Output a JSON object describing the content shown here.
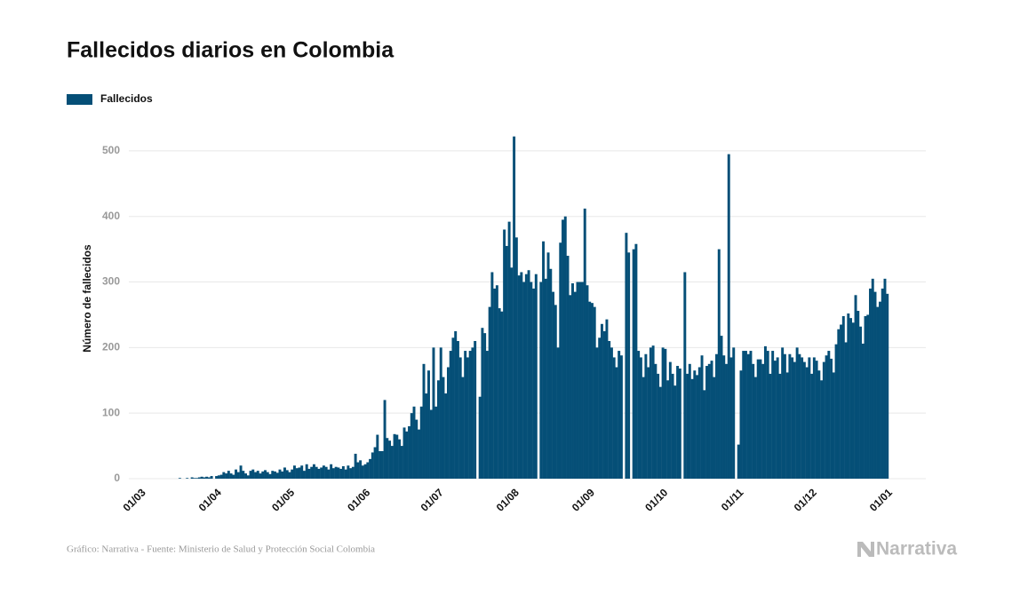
{
  "chart_data": {
    "type": "bar",
    "title": "Fallecidos diarios en Colombia",
    "y_label": "Número de fallecidos",
    "source": "Gráfico: Narrativa - Fuente: Ministerio de Salud y Protección Social Colombia",
    "logo": "Narrativa",
    "grid": true,
    "ylim": [
      0,
      550
    ],
    "yticks": [
      0,
      100,
      200,
      300,
      400,
      500
    ],
    "categories": [
      "01/03",
      null,
      null,
      null,
      null,
      null,
      null,
      null,
      null,
      null,
      null,
      null,
      null,
      null,
      null,
      null,
      null,
      null,
      null,
      null,
      null,
      null,
      null,
      null,
      null,
      null,
      null,
      null,
      null,
      null,
      null,
      "01/04",
      null,
      null,
      null,
      null,
      null,
      null,
      null,
      null,
      null,
      null,
      null,
      null,
      null,
      null,
      null,
      null,
      null,
      null,
      null,
      null,
      null,
      null,
      null,
      null,
      null,
      null,
      null,
      null,
      null,
      "01/05",
      null,
      null,
      null,
      null,
      null,
      null,
      null,
      null,
      null,
      null,
      null,
      null,
      null,
      null,
      null,
      null,
      null,
      null,
      null,
      null,
      null,
      null,
      null,
      null,
      null,
      null,
      null,
      null,
      null,
      null,
      "01/06",
      null,
      null,
      null,
      null,
      null,
      null,
      null,
      null,
      null,
      null,
      null,
      null,
      null,
      null,
      null,
      null,
      null,
      null,
      null,
      null,
      null,
      null,
      null,
      null,
      null,
      null,
      null,
      null,
      null,
      "01/07",
      null,
      null,
      null,
      null,
      null,
      null,
      null,
      null,
      null,
      null,
      null,
      null,
      null,
      null,
      null,
      null,
      null,
      null,
      null,
      null,
      null,
      null,
      null,
      null,
      null,
      null,
      null,
      null,
      null,
      null,
      "01/08",
      null,
      null,
      null,
      null,
      null,
      null,
      null,
      null,
      null,
      null,
      null,
      null,
      null,
      null,
      null,
      null,
      null,
      null,
      null,
      null,
      null,
      null,
      null,
      null,
      null,
      null,
      null,
      null,
      null,
      null,
      "01/09",
      null,
      null,
      null,
      null,
      null,
      null,
      null,
      null,
      null,
      null,
      null,
      null,
      null,
      null,
      null,
      null,
      null,
      null,
      null,
      null,
      null,
      null,
      null,
      null,
      null,
      null,
      null,
      null,
      null,
      "01/10",
      null,
      null,
      null,
      null,
      null,
      null,
      null,
      null,
      null,
      null,
      null,
      null,
      null,
      null,
      null,
      null,
      null,
      null,
      null,
      null,
      null,
      null,
      null,
      null,
      null,
      null,
      null,
      null,
      null,
      null,
      "01/11",
      null,
      null,
      null,
      null,
      null,
      null,
      null,
      null,
      null,
      null,
      null,
      null,
      null,
      null,
      null,
      null,
      null,
      null,
      null,
      null,
      null,
      null,
      null,
      null,
      null,
      null,
      null,
      null,
      null,
      "01/12",
      null,
      null,
      null,
      null,
      null,
      null,
      null,
      null,
      null,
      null,
      null,
      null,
      null,
      null,
      null,
      null,
      null,
      null,
      null,
      null,
      null,
      null,
      null,
      null,
      null,
      null,
      null,
      null,
      null,
      null,
      "01/01"
    ],
    "series": [
      {
        "name": "Fallecidos",
        "color": "#054f77",
        "values": [
          0,
          0,
          0,
          0,
          0,
          0,
          0,
          0,
          0,
          0,
          0,
          0,
          0,
          0,
          0,
          0,
          1,
          0,
          0,
          1,
          0,
          2,
          1,
          1,
          2,
          3,
          2,
          3,
          2,
          4,
          0,
          4,
          5,
          6,
          10,
          8,
          12,
          8,
          6,
          14,
          10,
          20,
          12,
          8,
          5,
          12,
          14,
          10,
          12,
          8,
          11,
          13,
          10,
          7,
          12,
          11,
          9,
          14,
          11,
          17,
          13,
          10,
          14,
          20,
          16,
          17,
          20,
          12,
          22,
          15,
          18,
          22,
          18,
          15,
          17,
          20,
          18,
          14,
          22,
          16,
          18,
          17,
          15,
          19,
          14,
          20,
          16,
          18,
          38,
          25,
          28,
          20,
          22,
          25,
          30,
          40,
          48,
          67,
          42,
          42,
          120,
          62,
          58,
          50,
          68,
          67,
          60,
          50,
          78,
          72,
          80,
          100,
          110,
          90,
          75,
          110,
          175,
          130,
          165,
          105,
          200,
          110,
          150,
          200,
          155,
          130,
          170,
          195,
          215,
          225,
          210,
          185,
          155,
          195,
          185,
          195,
          200,
          210,
          0,
          125,
          230,
          222,
          195,
          262,
          315,
          290,
          295,
          260,
          255,
          380,
          355,
          392,
          322,
          522,
          368,
          310,
          315,
          300,
          312,
          318,
          300,
          290,
          312,
          0,
          300,
          362,
          305,
          345,
          320,
          285,
          265,
          200,
          360,
          395,
          400,
          340,
          280,
          298,
          285,
          300,
          300,
          300,
          412,
          295,
          270,
          268,
          262,
          200,
          215,
          236,
          225,
          243,
          210,
          200,
          185,
          170,
          195,
          188,
          0,
          375,
          345,
          0,
          350,
          358,
          195,
          185,
          155,
          190,
          170,
          200,
          203,
          175,
          160,
          140,
          200,
          198,
          150,
          178,
          160,
          142,
          172,
          168,
          0,
          315,
          160,
          175,
          152,
          165,
          158,
          170,
          188,
          135,
          172,
          175,
          180,
          155,
          190,
          350,
          218,
          188,
          175,
          495,
          185,
          200,
          0,
          52,
          165,
          195,
          195,
          190,
          195,
          175,
          155,
          182,
          182,
          175,
          202,
          195,
          160,
          195,
          180,
          185,
          160,
          200,
          190,
          162,
          190,
          185,
          178,
          200,
          190,
          185,
          178,
          170,
          185,
          160,
          185,
          180,
          165,
          150,
          178,
          188,
          195,
          183,
          162,
          205,
          228,
          235,
          248,
          208,
          252,
          245,
          238,
          280,
          256,
          232,
          206,
          248,
          250,
          290,
          305,
          285,
          262,
          270,
          290,
          305,
          282
        ]
      }
    ]
  }
}
